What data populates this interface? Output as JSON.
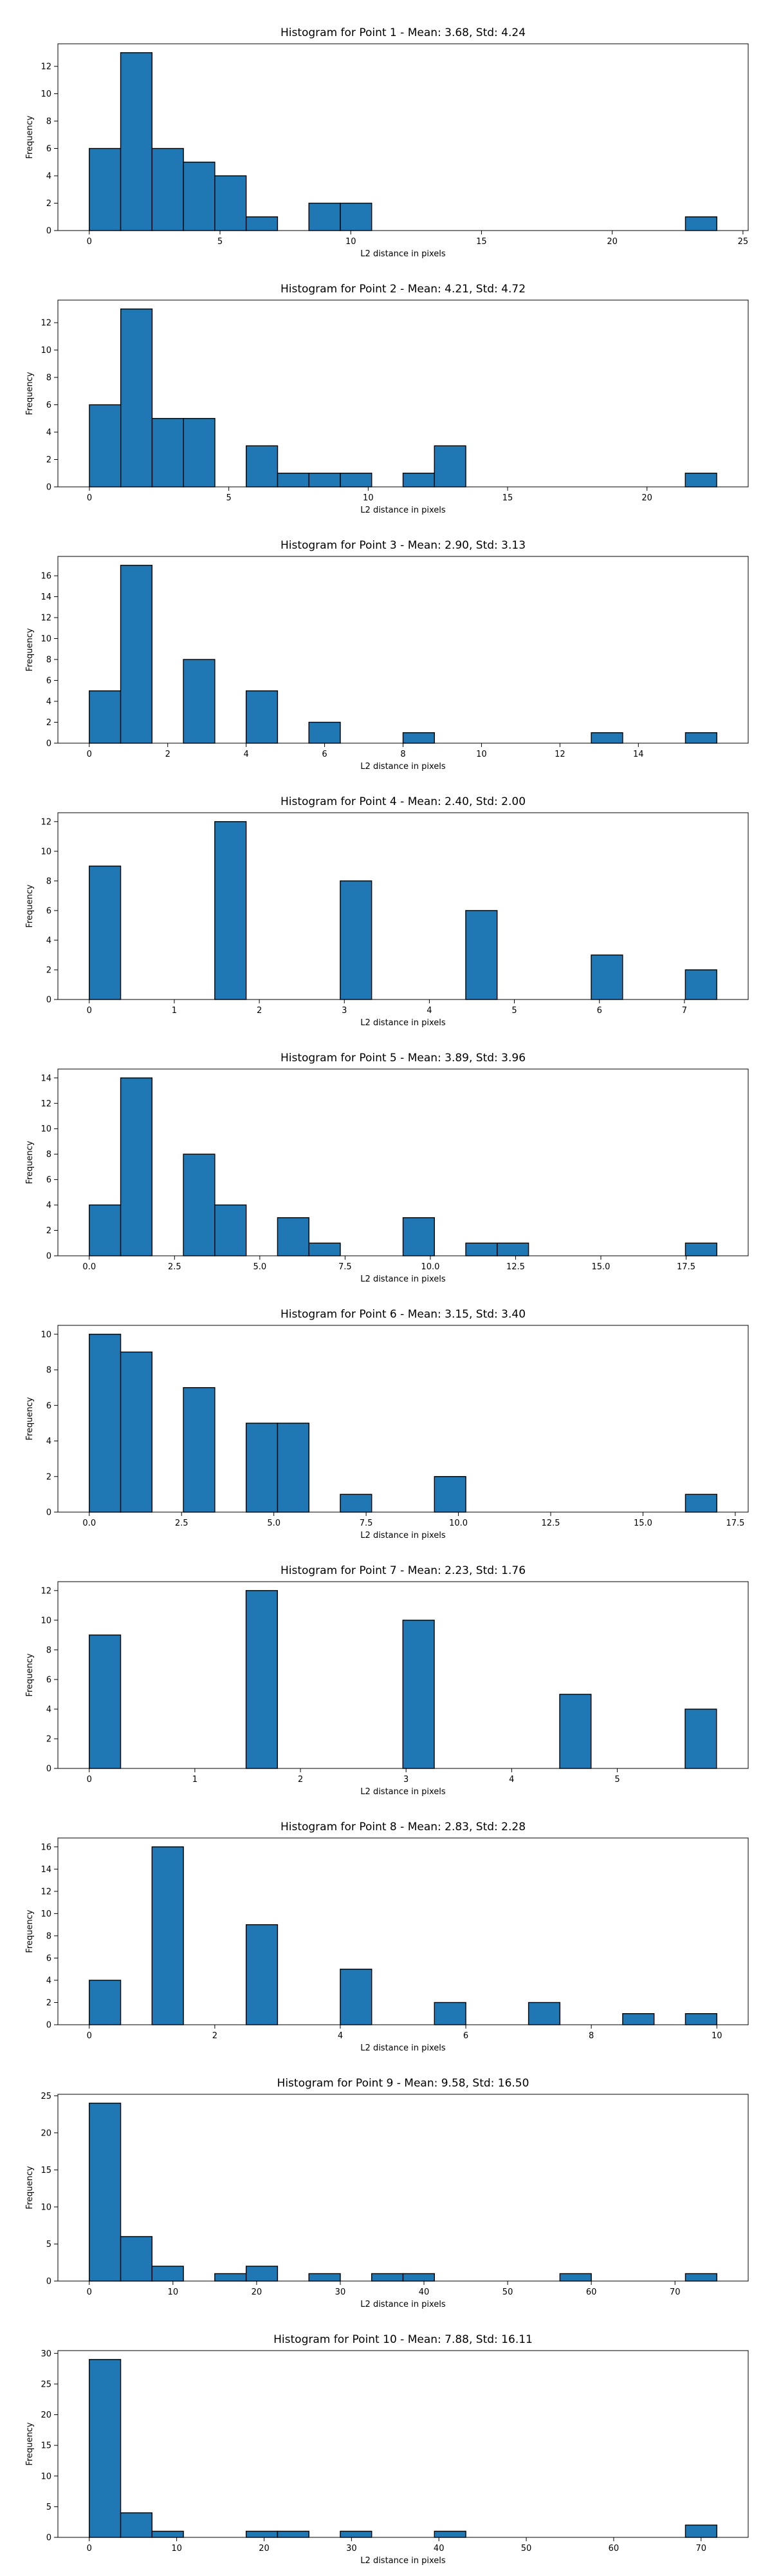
{
  "chart_data": [
    {
      "type": "bar",
      "title": "Histogram for Point 1 - Mean: 3.68, Std: 4.24",
      "xlabel": "L2 distance in pixels",
      "ylabel": "Frequency",
      "xlim": [
        -1.2,
        25.2
      ],
      "ylim": [
        0,
        13.65
      ],
      "xticks": [
        0,
        5,
        10,
        15,
        20,
        25
      ],
      "yticks": [
        0,
        2,
        4,
        6,
        8,
        10,
        12
      ],
      "xtick_labels": [
        "0",
        "5",
        "10",
        "15",
        "20",
        "25"
      ],
      "ytick_labels": [
        "0",
        "2",
        "4",
        "6",
        "8",
        "10",
        "12"
      ],
      "bin_start": 0,
      "bin_width": 1.2,
      "counts": [
        6,
        13,
        6,
        5,
        4,
        1,
        0,
        2,
        2,
        0,
        0,
        0,
        0,
        0,
        0,
        0,
        0,
        0,
        0,
        1
      ]
    },
    {
      "type": "bar",
      "title": "Histogram for Point 2 - Mean: 4.21, Std: 4.72",
      "xlabel": "L2 distance in pixels",
      "ylabel": "Frequency",
      "xlim": [
        -1.13,
        23.63
      ],
      "ylim": [
        0,
        13.65
      ],
      "xticks": [
        0,
        5,
        10,
        15,
        20
      ],
      "yticks": [
        0,
        2,
        4,
        6,
        8,
        10,
        12
      ],
      "xtick_labels": [
        "0",
        "5",
        "10",
        "15",
        "20"
      ],
      "ytick_labels": [
        "0",
        "2",
        "4",
        "6",
        "8",
        "10",
        "12"
      ],
      "bin_start": 0,
      "bin_width": 1.125,
      "counts": [
        6,
        13,
        5,
        5,
        0,
        3,
        1,
        1,
        1,
        0,
        1,
        3,
        0,
        0,
        0,
        0,
        0,
        0,
        0,
        1
      ]
    },
    {
      "type": "bar",
      "title": "Histogram for Point 3 - Mean: 2.90, Std: 3.13",
      "xlabel": "L2 distance in pixels",
      "ylabel": "Frequency",
      "xlim": [
        -0.8,
        16.8
      ],
      "ylim": [
        0,
        17.85
      ],
      "xticks": [
        0,
        2,
        4,
        6,
        8,
        10,
        12,
        14
      ],
      "yticks": [
        0,
        2,
        4,
        6,
        8,
        10,
        12,
        14,
        16
      ],
      "xtick_labels": [
        "0",
        "2",
        "4",
        "6",
        "8",
        "10",
        "12",
        "14"
      ],
      "ytick_labels": [
        "0",
        "2",
        "4",
        "6",
        "8",
        "10",
        "12",
        "14",
        "16"
      ],
      "bin_start": 0,
      "bin_width": 0.8,
      "counts": [
        5,
        17,
        0,
        8,
        0,
        5,
        0,
        2,
        0,
        0,
        1,
        0,
        0,
        0,
        0,
        0,
        1,
        0,
        0,
        1
      ]
    },
    {
      "type": "bar",
      "title": "Histogram for Point 4 - Mean: 2.40, Std: 2.00",
      "xlabel": "L2 distance in pixels",
      "ylabel": "Frequency",
      "xlim": [
        -0.369,
        7.75
      ],
      "ylim": [
        0,
        12.6
      ],
      "xticks": [
        0,
        1,
        2,
        3,
        4,
        5,
        6,
        7
      ],
      "yticks": [
        0,
        2,
        4,
        6,
        8,
        10,
        12
      ],
      "xtick_labels": [
        "0",
        "1",
        "2",
        "3",
        "4",
        "5",
        "6",
        "7"
      ],
      "ytick_labels": [
        "0",
        "2",
        "4",
        "6",
        "8",
        "10",
        "12"
      ],
      "bin_start": 0,
      "bin_width": 0.369,
      "counts": [
        9,
        0,
        0,
        0,
        12,
        0,
        0,
        0,
        8,
        0,
        0,
        0,
        6,
        0,
        0,
        0,
        3,
        0,
        0,
        2
      ]
    },
    {
      "type": "bar",
      "title": "Histogram for Point 5 - Mean: 3.89, Std: 3.96",
      "xlabel": "L2 distance in pixels",
      "ylabel": "Frequency",
      "xlim": [
        -0.92,
        19.32
      ],
      "ylim": [
        0,
        14.7
      ],
      "xticks": [
        0,
        2.5,
        5,
        7.5,
        10,
        12.5,
        15,
        17.5
      ],
      "yticks": [
        0,
        2,
        4,
        6,
        8,
        10,
        12,
        14
      ],
      "xtick_labels": [
        "0.0",
        "2.5",
        "5.0",
        "7.5",
        "10.0",
        "12.5",
        "15.0",
        "17.5"
      ],
      "ytick_labels": [
        "0",
        "2",
        "4",
        "6",
        "8",
        "10",
        "12",
        "14"
      ],
      "bin_start": 0,
      "bin_width": 0.92,
      "counts": [
        4,
        14,
        0,
        8,
        4,
        0,
        3,
        1,
        0,
        0,
        3,
        0,
        1,
        1,
        0,
        0,
        0,
        0,
        0,
        1
      ]
    },
    {
      "type": "bar",
      "title": "Histogram for Point 6 - Mean: 3.15, Std: 3.40",
      "xlabel": "L2 distance in pixels",
      "ylabel": "Frequency",
      "xlim": [
        -0.85,
        17.85
      ],
      "ylim": [
        0,
        10.5
      ],
      "xticks": [
        0,
        2.5,
        5,
        7.5,
        10,
        12.5,
        15,
        17.5
      ],
      "yticks": [
        0,
        2,
        4,
        6,
        8,
        10
      ],
      "xtick_labels": [
        "0.0",
        "2.5",
        "5.0",
        "7.5",
        "10.0",
        "12.5",
        "15.0",
        "17.5"
      ],
      "ytick_labels": [
        "0",
        "2",
        "4",
        "6",
        "8",
        "10"
      ],
      "bin_start": 0,
      "bin_width": 0.85,
      "counts": [
        10,
        9,
        0,
        7,
        0,
        5,
        5,
        0,
        1,
        0,
        0,
        2,
        0,
        0,
        0,
        0,
        0,
        0,
        0,
        1
      ]
    },
    {
      "type": "bar",
      "title": "Histogram for Point 7 - Mean: 2.23, Std: 1.76",
      "xlabel": "L2 distance in pixels",
      "ylabel": "Frequency",
      "xlim": [
        -0.297,
        6.24
      ],
      "ylim": [
        0,
        12.6
      ],
      "xticks": [
        0,
        1,
        2,
        3,
        4,
        5
      ],
      "yticks": [
        0,
        2,
        4,
        6,
        8,
        10,
        12
      ],
      "xtick_labels": [
        "0",
        "1",
        "2",
        "3",
        "4",
        "5"
      ],
      "ytick_labels": [
        "0",
        "2",
        "4",
        "6",
        "8",
        "10",
        "12"
      ],
      "bin_start": 0,
      "bin_width": 0.297,
      "counts": [
        9,
        0,
        0,
        0,
        0,
        12,
        0,
        0,
        0,
        0,
        10,
        0,
        0,
        0,
        0,
        5,
        0,
        0,
        0,
        4
      ]
    },
    {
      "type": "bar",
      "title": "Histogram for Point 8 - Mean: 2.83, Std: 2.28",
      "xlabel": "L2 distance in pixels",
      "ylabel": "Frequency",
      "xlim": [
        -0.5,
        10.5
      ],
      "ylim": [
        0,
        16.8
      ],
      "xticks": [
        0,
        2,
        4,
        6,
        8,
        10
      ],
      "yticks": [
        0,
        2,
        4,
        6,
        8,
        10,
        12,
        14,
        16
      ],
      "xtick_labels": [
        "0",
        "2",
        "4",
        "6",
        "8",
        "10"
      ],
      "ytick_labels": [
        "0",
        "2",
        "4",
        "6",
        "8",
        "10",
        "12",
        "14",
        "16"
      ],
      "bin_start": 0,
      "bin_width": 0.5,
      "counts": [
        4,
        0,
        16,
        0,
        0,
        9,
        0,
        0,
        5,
        0,
        0,
        2,
        0,
        0,
        2,
        0,
        0,
        1,
        0,
        1
      ]
    },
    {
      "type": "bar",
      "title": "Histogram for Point 9 - Mean: 9.58, Std: 16.50",
      "xlabel": "L2 distance in pixels",
      "ylabel": "Frequency",
      "xlim": [
        -3.75,
        78.75
      ],
      "ylim": [
        0,
        25.2
      ],
      "xticks": [
        0,
        10,
        20,
        30,
        40,
        50,
        60,
        70
      ],
      "yticks": [
        0,
        5,
        10,
        15,
        20,
        25
      ],
      "xtick_labels": [
        "0",
        "10",
        "20",
        "30",
        "40",
        "50",
        "60",
        "70"
      ],
      "ytick_labels": [
        "0",
        "5",
        "10",
        "15",
        "20",
        "25"
      ],
      "bin_start": 0,
      "bin_width": 3.75,
      "counts": [
        24,
        6,
        2,
        0,
        1,
        2,
        0,
        1,
        0,
        1,
        1,
        0,
        0,
        0,
        0,
        1,
        0,
        0,
        0,
        1
      ]
    },
    {
      "type": "bar",
      "title": "Histogram for Point 10 - Mean: 7.88, Std: 16.11",
      "xlabel": "L2 distance in pixels",
      "ylabel": "Frequency",
      "xlim": [
        -3.59,
        75.39
      ],
      "ylim": [
        0,
        30.45
      ],
      "xticks": [
        0,
        10,
        20,
        30,
        40,
        50,
        60,
        70
      ],
      "yticks": [
        0,
        5,
        10,
        15,
        20,
        25,
        30
      ],
      "xtick_labels": [
        "0",
        "10",
        "20",
        "30",
        "40",
        "50",
        "60",
        "70"
      ],
      "ytick_labels": [
        "0",
        "5",
        "10",
        "15",
        "20",
        "25",
        "30"
      ],
      "bin_start": 0,
      "bin_width": 3.59,
      "counts": [
        29,
        4,
        1,
        0,
        0,
        1,
        1,
        0,
        1,
        0,
        0,
        1,
        0,
        0,
        0,
        0,
        0,
        0,
        0,
        2
      ]
    }
  ],
  "colors": {
    "bar_fill": "#1f77b4",
    "bar_edge": "#000000",
    "axis": "#000000",
    "text": "#000000"
  }
}
